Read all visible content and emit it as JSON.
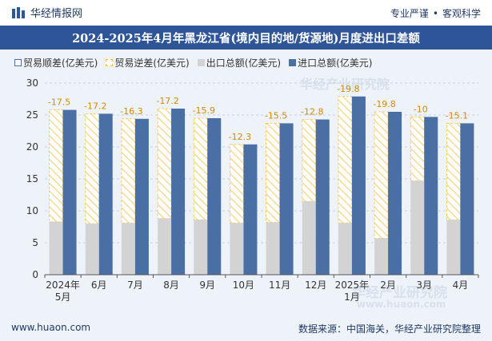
{
  "header": {
    "brand": "华经情报网",
    "tags": [
      "专业严谨",
      "客观科学"
    ]
  },
  "title": "2024-2025年4月年黑龙江省(境内目的地/货源地)月度进出口差额",
  "legend": [
    "贸易顺差(亿美元)",
    "贸易逆差(亿美元)",
    "出口总额(亿美元)",
    "进口总额(亿美元)"
  ],
  "footer": {
    "site": "www.huaon.com",
    "source": "数据来源：中国海关，华经产业研究院整理"
  },
  "watermarks": [
    "华经产业研究院",
    "www.huaon.com"
  ],
  "colors": {
    "import": "#4a6fa5",
    "export": "#d3d3d3",
    "deficit": "#f5c242",
    "title_bg": "#2e5597"
  },
  "chart_data": {
    "type": "bar",
    "categories": [
      "2024年\n5月",
      "6月",
      "7月",
      "8月",
      "9月",
      "10月",
      "11月",
      "12月",
      "2025年\n1月",
      "2月",
      "3月",
      "4月"
    ],
    "series": [
      {
        "name": "出口总额(亿美元)",
        "values": [
          8.3,
          8.0,
          8.1,
          8.8,
          8.6,
          8.1,
          8.2,
          11.5,
          8.1,
          5.7,
          14.7,
          8.6
        ]
      },
      {
        "name": "进口总额(亿美元)",
        "values": [
          25.8,
          25.2,
          24.4,
          26.0,
          24.5,
          20.4,
          23.7,
          24.3,
          27.9,
          25.5,
          24.7,
          23.7
        ]
      }
    ],
    "balance_labels": [
      "-17.5",
      "-17.2",
      "-16.3",
      "-17.2",
      "-15.9",
      "-12.3",
      "-15.5",
      "-12.8",
      "-19.8",
      "-19.8",
      "-10",
      "-15.1"
    ],
    "ylim": [
      0,
      30
    ],
    "yticks": [
      0,
      5,
      10,
      15,
      20,
      25,
      30
    ],
    "grid": true,
    "legend_position": "top-left"
  }
}
